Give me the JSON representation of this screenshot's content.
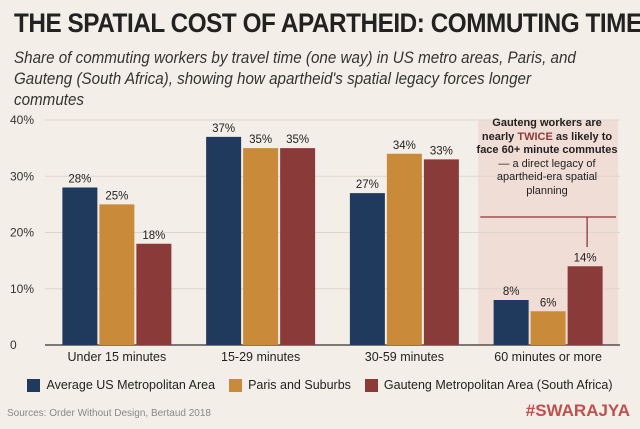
{
  "chart_data": {
    "type": "bar",
    "title": "THE SPATIAL COST OF APARTHEID: COMMUTING TIMES",
    "subtitle": "Share of commuting workers by travel time (one way) in US metro areas, Paris, and Gauteng (South Africa), showing how apartheid's spatial legacy forces longer commutes",
    "categories": [
      "Under 15 minutes",
      "15-29 minutes",
      "30-59 minutes",
      "60 minutes or more"
    ],
    "series": [
      {
        "name": "Average US Metropolitan Area",
        "values": [
          28,
          37,
          27,
          8
        ],
        "color": "#1f3a5c"
      },
      {
        "name": "Paris and Suburbs",
        "values": [
          25,
          35,
          34,
          6
        ],
        "color": "#c98b3a"
      },
      {
        "name": "Gauteng Metropolitan Area (South Africa)",
        "values": [
          18,
          35,
          33,
          14
        ],
        "color": "#8b3a3a"
      }
    ],
    "ylim": [
      0,
      40
    ],
    "yticks": [
      "0",
      "10%",
      "20%",
      "30%",
      "40%"
    ],
    "ytick_values": [
      0,
      10,
      20,
      30,
      40
    ],
    "grid": true,
    "legend": "bottom",
    "highlight_category": "60 minutes or more",
    "annotation": {
      "pre": "Gauteng workers are nearly ",
      "emph": "TWICE",
      "post": " as likely to face 60+ minute commutes",
      "rest": "— a direct legacy of apartheid-era spatial planning"
    }
  },
  "source": "Sources: Order Without Design, Bertaud 2018",
  "brand": "#SWARAJYA"
}
